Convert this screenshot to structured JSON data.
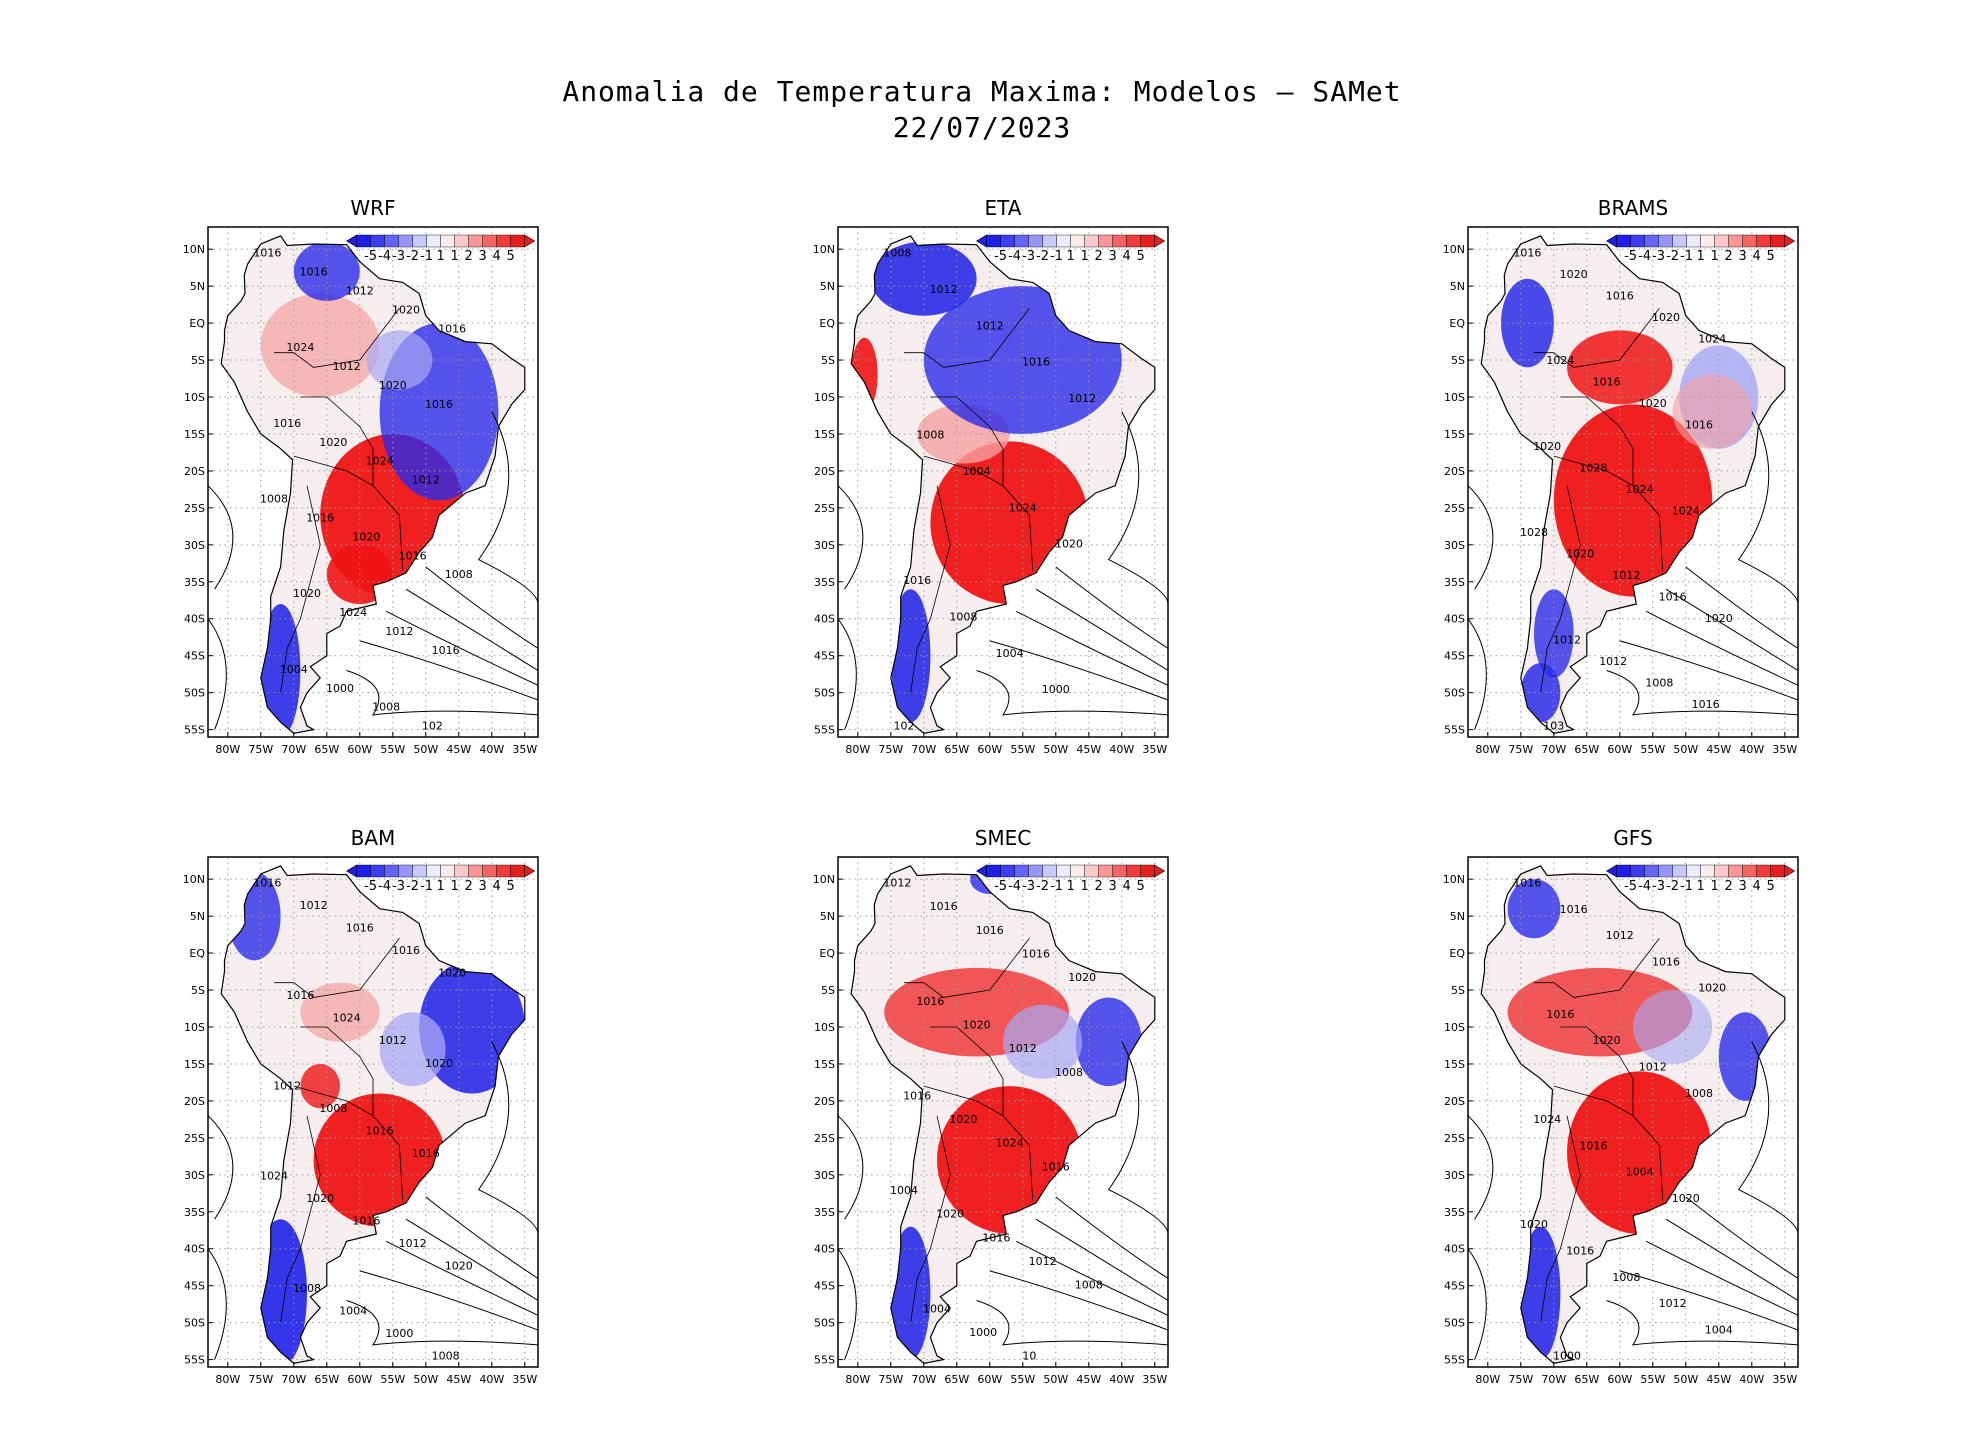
{
  "title": {
    "line1": "Anomalia de Temperatura Maxima: Modelos – SAMet",
    "line2": "22/07/2023"
  },
  "lat_labels": [
    "10N",
    "5N",
    "EQ",
    "5S",
    "10S",
    "15S",
    "20S",
    "25S",
    "30S",
    "35S",
    "40S",
    "45S",
    "50S",
    "55S"
  ],
  "lon_labels": [
    "80W",
    "75W",
    "70W",
    "65W",
    "60W",
    "55W",
    "50W",
    "45W",
    "40W",
    "35W"
  ],
  "colorbar": {
    "labels": [
      "-5",
      "-4",
      "-3",
      "-2",
      "-1",
      "1",
      "1",
      "2",
      "3",
      "4",
      "5"
    ],
    "colors": [
      "#1e1ee6",
      "#3c3cf0",
      "#6464f5",
      "#9696fa",
      "#c8c8fc",
      "#ebebff",
      "#ffebeb",
      "#fcc8c8",
      "#fa9696",
      "#f56464",
      "#f03c3c",
      "#e61e1e"
    ]
  },
  "colors": {
    "land_neutral": "#f6eeee",
    "warm": "#f01414",
    "warm_light": "#f7a0a0",
    "cool": "#2a2ae8",
    "cool_light": "#a8a8f5",
    "isobar": "#000000"
  },
  "panels": [
    {
      "name": "WRF",
      "isobars": [
        "1016",
        "1016",
        "1012",
        "1020",
        "1016",
        "1024",
        "1012",
        "1020",
        "1016",
        "1016",
        "1020",
        "1024",
        "1012",
        "1008",
        "1016",
        "1020",
        "1016",
        "1008",
        "1020",
        "1024",
        "1012",
        "1016",
        "1004",
        "1000",
        "1008",
        "102"
      ]
    },
    {
      "name": "ETA",
      "isobars": [
        "1008",
        "1012",
        "1012",
        "1016",
        "1012",
        "1008",
        "1004",
        "1024",
        "1020",
        "1016",
        "1008",
        "1004",
        "1000",
        "102"
      ]
    },
    {
      "name": "BRAMS",
      "isobars": [
        "1016",
        "1020",
        "1016",
        "1020",
        "1024",
        "1024",
        "1016",
        "1020",
        "1016",
        "1020",
        "1028",
        "1024",
        "1024",
        "1028",
        "1020",
        "1012",
        "1016",
        "1020",
        "1012",
        "1012",
        "1008",
        "1016",
        "103"
      ]
    },
    {
      "name": "BAM",
      "isobars": [
        "1016",
        "1012",
        "1016",
        "1016",
        "1020",
        "1016",
        "1024",
        "1012",
        "1020",
        "1012",
        "1008",
        "1016",
        "1016",
        "1024",
        "1020",
        "1016",
        "1012",
        "1020",
        "1008",
        "1004",
        "1000",
        "1008"
      ]
    },
    {
      "name": "SMEC",
      "isobars": [
        "1012",
        "1016",
        "1016",
        "1016",
        "1020",
        "1016",
        "1020",
        "1012",
        "1008",
        "1016",
        "1020",
        "1024",
        "1016",
        "1004",
        "1020",
        "1016",
        "1012",
        "1008",
        "1004",
        "1000",
        "10"
      ]
    },
    {
      "name": "GFS",
      "isobars": [
        "1016",
        "1016",
        "1012",
        "1016",
        "1020",
        "1016",
        "1020",
        "1012",
        "1008",
        "1024",
        "1016",
        "1004",
        "1020",
        "1020",
        "1016",
        "1008",
        "1012",
        "1004",
        "1000"
      ]
    }
  ]
}
